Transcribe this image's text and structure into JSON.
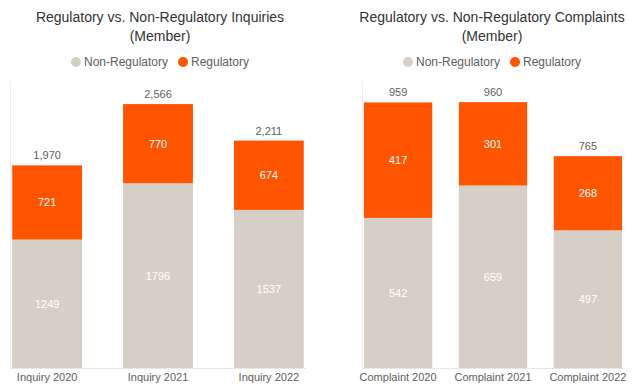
{
  "chart_data": [
    {
      "type": "bar",
      "title": "Regulatory vs. Non-Regulatory Inquiries (Member)",
      "categories": [
        "Inquiry 2020",
        "Inquiry 2021",
        "Inquiry 2022"
      ],
      "series": [
        {
          "name": "Non-Regulatory",
          "color": "#d6cfc6",
          "values": [
            1249,
            1796,
            1537
          ]
        },
        {
          "name": "Regulatory",
          "color": "#ff5500",
          "values": [
            721,
            770,
            674
          ]
        }
      ],
      "totals": [
        1970,
        2566,
        2211
      ],
      "total_labels": [
        "1,970",
        "2,566",
        "2,211"
      ],
      "stacked": true,
      "data_labels": true,
      "legend": "top",
      "tick_labels": "x",
      "ylim": [
        0,
        2800
      ],
      "yticks": []
    },
    {
      "type": "bar",
      "title": "Regulatory vs. Non-Regulatory Complaints (Member)",
      "categories": [
        "Complaint 2020",
        "Complaint 2021",
        "Complaint 2022"
      ],
      "series": [
        {
          "name": "Non-Regulatory",
          "color": "#d6cfc6",
          "values": [
            542,
            659,
            497
          ]
        },
        {
          "name": "Regulatory",
          "color": "#ff5500",
          "values": [
            417,
            301,
            268
          ]
        }
      ],
      "totals": [
        959,
        960,
        765
      ],
      "total_labels": [
        "959",
        "960",
        "765"
      ],
      "stacked": true,
      "data_labels": true,
      "legend": "top",
      "tick_labels": "x",
      "ylim": [
        0,
        1040
      ],
      "yticks": []
    }
  ]
}
